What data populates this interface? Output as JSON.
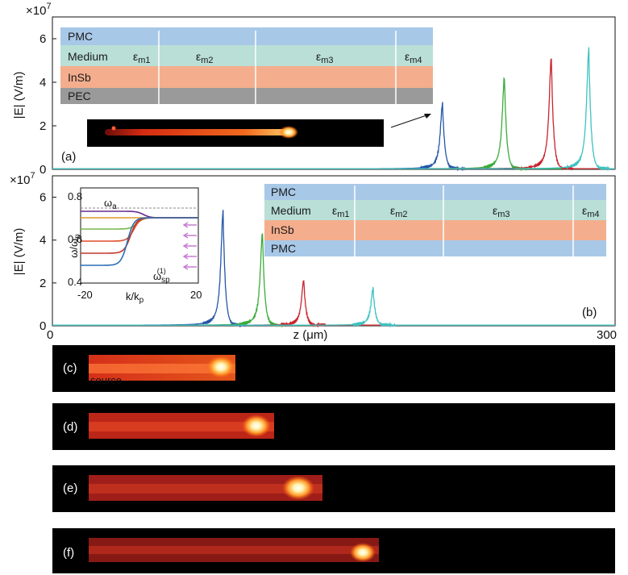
{
  "figure": {
    "panel_a": {
      "label": "(a)",
      "multiplier": "×10",
      "multiplier_exp": "7",
      "ylabel": "|E|  (V/m)",
      "layers": [
        "PMC",
        "Medium",
        "InSb",
        "PEC"
      ],
      "eps": [
        "ε",
        "ε",
        "ε",
        "ε"
      ],
      "eps_sub": [
        "m1",
        "m2",
        "m3",
        "m4"
      ],
      "colors": {
        "pmc": "#a8c8e8",
        "medium": "#b9dfd7",
        "insb": "#f4ae8d",
        "pec": "#9a9a9a"
      }
    },
    "panel_b": {
      "label": "(b)",
      "multiplier": "×10",
      "multiplier_exp": "7",
      "ylabel": "|E|  (V/m)",
      "xlabel": "z (μm)",
      "layers": [
        "PMC",
        "Medium",
        "InSb",
        "PMC"
      ],
      "eps": [
        "ε",
        "ε",
        "ε",
        "ε"
      ],
      "eps_sub": [
        "m1",
        "m2",
        "m3",
        "m4"
      ],
      "inset": {
        "ylabel_top": "ω/ω",
        "ylabel_sub": "p",
        "xlabel": "k/k",
        "xlabel_sub": "p",
        "omega_a": "ω",
        "omega_a_sub": "a",
        "omega_sp": "ω",
        "omega_sp_sub": "sp",
        "omega_sp_sup": "(1)",
        "yticks": [
          "0.8",
          "0.6",
          "0.4"
        ],
        "xticks": [
          "-20",
          "20"
        ],
        "curve_colors": [
          "#6a2c91",
          "#e0962a",
          "#7ab648",
          "#e04b2a",
          "#c0392b",
          "#2a6fb5"
        ]
      }
    },
    "snapshots": {
      "labels": [
        "(c)",
        "(d)",
        "(e)",
        "(f)"
      ],
      "source_label": "source",
      "source_color": "#d7e34a"
    },
    "series_colors": [
      "#2456a8",
      "#3bab3b",
      "#c8242c",
      "#3ec2c0"
    ],
    "chart_data": [
      {
        "type": "line",
        "title": "",
        "xlabel": "",
        "ylabel": "|E|  (V/m)",
        "xlim": [
          0,
          300
        ],
        "ylim": [
          0,
          7
        ],
        "yticks": [
          0,
          2,
          4,
          6
        ],
        "y_multiplier": "1e7",
        "series": [
          {
            "peak_z": 208,
            "peak_value": 3.0
          },
          {
            "peak_z": 241,
            "peak_value": 4.2
          },
          {
            "peak_z": 266,
            "peak_value": 5.1
          },
          {
            "peak_z": 286,
            "peak_value": 5.5
          }
        ]
      },
      {
        "type": "line",
        "title": "",
        "xlabel": "z (μm)",
        "ylabel": "|E|  (V/m)",
        "xlim": [
          0,
          300
        ],
        "ylim": [
          0,
          7
        ],
        "xticks": [
          0,
          300
        ],
        "yticks": [
          0,
          2,
          4,
          6
        ],
        "y_multiplier": "1e7",
        "series": [
          {
            "peak_z": 91,
            "peak_value": 5.3
          },
          {
            "peak_z": 112,
            "peak_value": 4.3
          },
          {
            "peak_z": 134,
            "peak_value": 2.1
          },
          {
            "peak_z": 171,
            "peak_value": 1.7
          }
        ]
      }
    ]
  }
}
